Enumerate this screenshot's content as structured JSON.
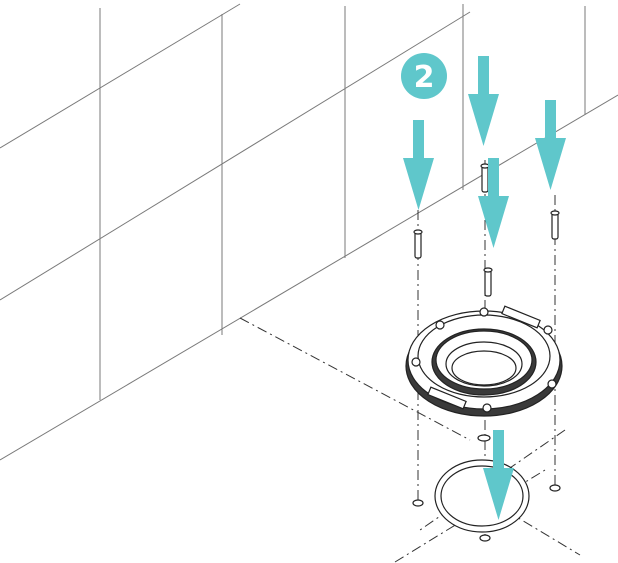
{
  "step": {
    "number": "2"
  },
  "colors": {
    "accent": "#5fc7cb",
    "line": "#7a7a7a",
    "part": "#222222"
  },
  "icons": [
    "down-arrow-icon",
    "screw-icon",
    "toilet-flange-icon",
    "gasket-ring-icon"
  ]
}
